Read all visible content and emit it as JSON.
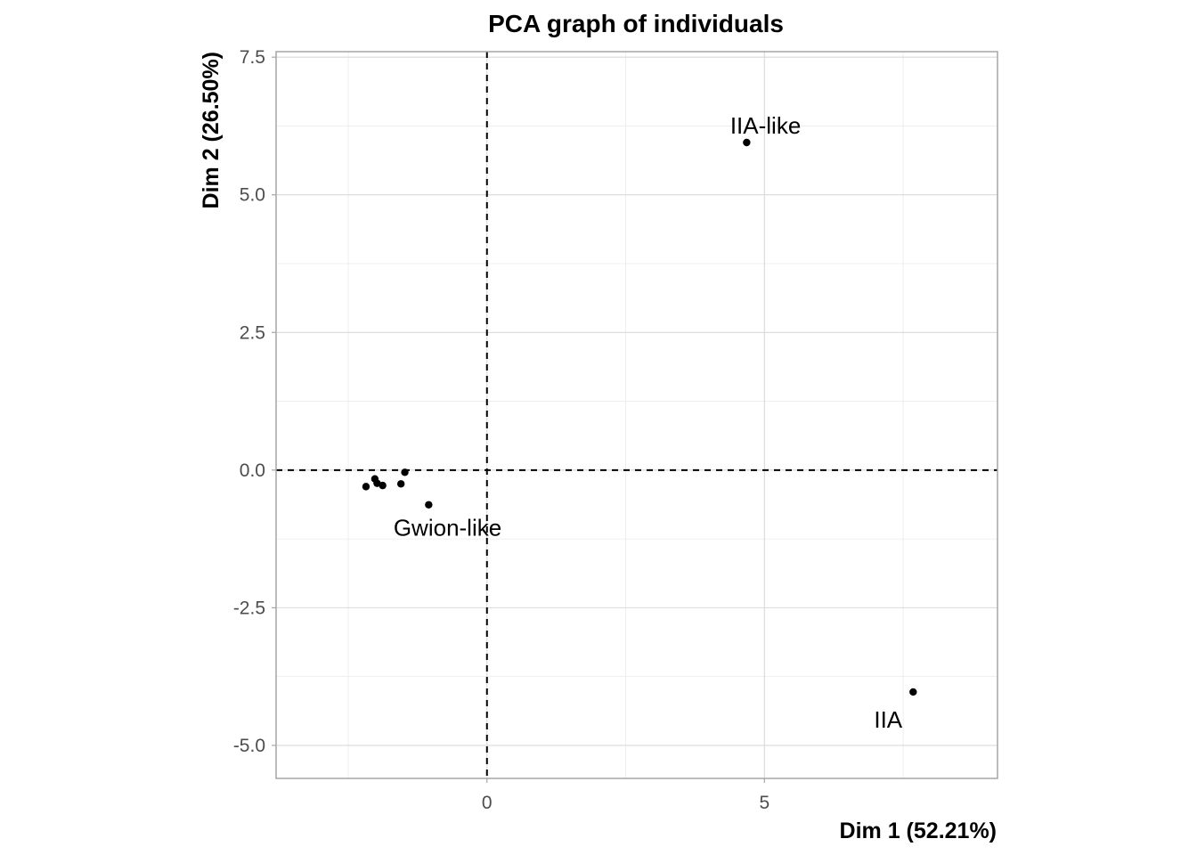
{
  "chart_data": {
    "type": "scatter",
    "title": "PCA graph of individuals",
    "xlabel": "Dim 1 (52.21%)",
    "ylabel": "Dim 2 (26.50%)",
    "xlim": [
      -3.8,
      9.2
    ],
    "ylim": [
      -5.6,
      7.6
    ],
    "x_ticks": [
      0,
      5
    ],
    "x_tick_labels": [
      "0",
      "5"
    ],
    "y_ticks": [
      -5.0,
      -2.5,
      0.0,
      2.5,
      5.0,
      7.5
    ],
    "y_tick_labels": [
      "-5.0",
      "-2.5",
      "0.0",
      "2.5",
      "5.0",
      "7.5"
    ],
    "grid": true,
    "reference_lines": {
      "x": 0,
      "y": 0,
      "style": "dashed"
    },
    "point_color": "#000000",
    "points": [
      {
        "x": 4.68,
        "y": 5.95
      },
      {
        "x": 7.68,
        "y": -4.03
      },
      {
        "x": -1.05,
        "y": -0.63
      },
      {
        "x": -1.48,
        "y": -0.04
      },
      {
        "x": -1.55,
        "y": -0.25
      },
      {
        "x": -1.88,
        "y": -0.28
      },
      {
        "x": -2.02,
        "y": -0.16
      },
      {
        "x": -1.98,
        "y": -0.24
      },
      {
        "x": -2.18,
        "y": -0.3
      }
    ],
    "annotations": [
      {
        "text": "IIA-like",
        "x": 5.02,
        "y": 6.26
      },
      {
        "text": "IIA",
        "x": 7.23,
        "y": -4.53
      },
      {
        "text": "Gwion-like",
        "x": -0.71,
        "y": -1.05
      }
    ]
  }
}
